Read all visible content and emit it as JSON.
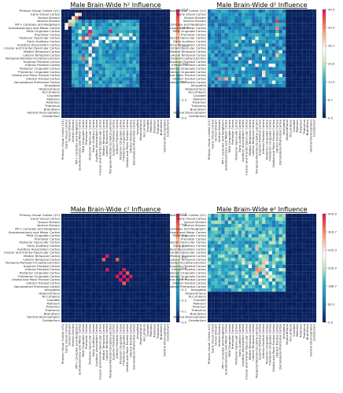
{
  "regions": [
    "Primary Visual Cortex (V1)",
    "Early Visual Cortex",
    "Dorsal Stream",
    "Ventral Stream",
    "MT+ Complex and Neighbors",
    "Somatosensory and Motor Cortex",
    "*Mid Cingulate Cortex",
    "Premotor Cortex",
    "Posterior Opercular Cortex",
    "Early Auditory Cortex",
    "Auditory Association Cortex",
    "Insular and Frontal Opercular Cortex",
    "Medial Temporal Cortex",
    "Lateral Temporal Cortex",
    "Temporal-Parietal-Occipital Junction",
    "Superior Parietal Cortex",
    "Inferior Parietal Cortex",
    "Posterior Cingulate Cortex",
    "**Anterior Cingulate Cortex",
    "Orbital and Polar Frontal Cortex",
    "Inferior Frontal Cortex",
    "Dorsolateral Prefrontal Cortex",
    "Amygdala",
    "Hippocampus",
    "Accumbens",
    "Caudate",
    "Pallidum",
    "Putamen",
    "Thalamus",
    "BrainStem",
    "Ventral Diencephalon",
    "Cerebellum"
  ],
  "colorscale": [
    "#081d58",
    "#225ea8",
    "#1d91c0",
    "#41b6c4",
    "#c7e9b4",
    "#ffffff",
    "#fcbba1",
    "#fb6a4a",
    "#e0115f"
  ],
  "chart_data": [
    {
      "type": "heatmap",
      "title": "Male Brain-Wide h² Influence",
      "vmax": 20.0,
      "colorbar_ticks": [
        "0.0",
        "3.3",
        "6.7",
        "10.0",
        "13.3",
        "16.7",
        "20.0"
      ],
      "hot_cells": [
        [
          1,
          4,
          13
        ],
        [
          1,
          5,
          14
        ],
        [
          2,
          4,
          18
        ],
        [
          2,
          3,
          11
        ],
        [
          3,
          3,
          10
        ],
        [
          4,
          3,
          9
        ],
        [
          5,
          8,
          12
        ],
        [
          6,
          5,
          11
        ],
        [
          6,
          8,
          20
        ],
        [
          7,
          8,
          18
        ],
        [
          8,
          7,
          14
        ],
        [
          6,
          14,
          20
        ],
        [
          10,
          9,
          14
        ],
        [
          10,
          10,
          13
        ],
        [
          11,
          8,
          12
        ],
        [
          12,
          8,
          14
        ],
        [
          13,
          9,
          13
        ],
        [
          14,
          8,
          12
        ],
        [
          15,
          8,
          13
        ],
        [
          16,
          8,
          14
        ],
        [
          17,
          7,
          12
        ],
        [
          18,
          8,
          14
        ],
        [
          19,
          8,
          13
        ],
        [
          20,
          7,
          12
        ],
        [
          21,
          8,
          14
        ]
      ],
      "block": {
        "rows": [
          3,
          22
        ],
        "cols": [
          3,
          22
        ],
        "base": 4.5,
        "spread": 5.0
      }
    },
    {
      "type": "heatmap",
      "title": "Male Brain-Wide d² Influence",
      "vmax": 40.0,
      "colorbar_ticks": [
        "0.0",
        "6.7",
        "13.3",
        "20.0",
        "26.7",
        "33.3",
        "40.0"
      ],
      "hot_cells": [
        [
          3,
          20,
          38
        ],
        [
          5,
          20,
          34
        ],
        [
          8,
          10,
          22
        ],
        [
          13,
          9,
          26
        ],
        [
          13,
          20,
          30
        ],
        [
          14,
          8,
          24
        ],
        [
          15,
          12,
          26
        ],
        [
          16,
          14,
          27
        ],
        [
          16,
          19,
          25
        ],
        [
          17,
          10,
          24
        ],
        [
          18,
          16,
          28
        ],
        [
          19,
          21,
          26
        ],
        [
          20,
          7,
          22
        ],
        [
          21,
          12,
          24
        ]
      ],
      "block": {
        "rows": [
          0,
          22
        ],
        "cols": [
          0,
          22
        ],
        "base": 8.0,
        "spread": 10.0
      }
    },
    {
      "type": "heatmap",
      "title": "Male Brain-Wide c² Influence",
      "vmax": 1.0,
      "colorbar_ticks": [
        "0.0",
        "0.1",
        "0.2",
        "0.3",
        "0.4",
        "0.5",
        "0.6",
        "0.7",
        "0.8",
        "0.9",
        "1.0"
      ],
      "hot_cells": [
        [
          12,
          13,
          1.0
        ],
        [
          16,
          13,
          1.0
        ],
        [
          16,
          18,
          1.0
        ],
        [
          17,
          17,
          1.0
        ],
        [
          18,
          16,
          1.0
        ],
        [
          18,
          18,
          1.0
        ],
        [
          19,
          17,
          1.0
        ],
        [
          19,
          19,
          1.0
        ],
        [
          18,
          20,
          1.0
        ]
      ],
      "block": {
        "rows": [
          0,
          0
        ],
        "cols": [
          0,
          0
        ],
        "base": 0.0,
        "spread": 0.0
      }
    },
    {
      "type": "heatmap",
      "title": "Male Brain-Wide e² Influence",
      "vmax": 500.0,
      "colorbar_ticks": [
        "0.0",
        "83.3",
        "166.7",
        "250.0",
        "333.3",
        "416.7",
        "500.0"
      ],
      "hot_cells": [
        [
          10,
          14,
          380
        ],
        [
          11,
          18,
          300
        ],
        [
          12,
          15,
          340
        ],
        [
          13,
          20,
          260
        ],
        [
          16,
          14,
          420
        ],
        [
          16,
          15,
          400
        ],
        [
          17,
          14,
          380
        ],
        [
          17,
          16,
          360
        ],
        [
          18,
          17,
          340
        ],
        [
          19,
          15,
          300
        ],
        [
          19,
          18,
          280
        ],
        [
          20,
          19,
          260
        ],
        [
          21,
          16,
          300
        ],
        [
          8,
          18,
          240
        ]
      ],
      "block": {
        "rows": [
          0,
          22
        ],
        "cols": [
          0,
          22
        ],
        "base": 140.0,
        "spread": 150.0
      }
    }
  ]
}
